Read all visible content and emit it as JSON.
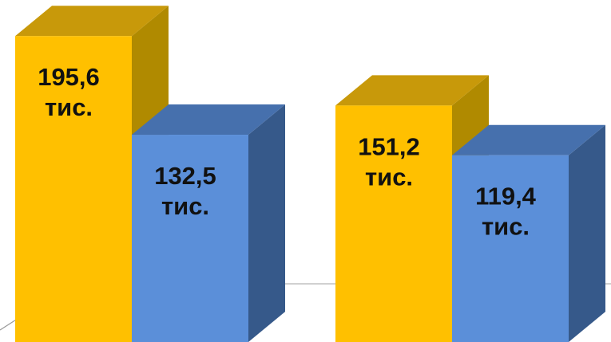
{
  "chart_data": {
    "type": "bar",
    "style": "3d-column",
    "categories": [
      "",
      ""
    ],
    "series": [
      {
        "color": "#FFC000",
        "side_color": "#B08A00",
        "top_color": "#C8990A",
        "values": [
          195.6,
          151.2
        ],
        "labels": [
          [
            "195,6",
            "тис."
          ],
          [
            "151,2",
            "тис."
          ]
        ]
      },
      {
        "color": "#5B8FD9",
        "side_color": "#36598A",
        "top_color": "#4670AD",
        "values": [
          132.5,
          119.4
        ],
        "labels": [
          [
            "132,5",
            "тис."
          ],
          [
            "119,4",
            "тис."
          ]
        ]
      }
    ],
    "title": "",
    "xlabel": "",
    "ylabel": "",
    "unit": "тис.",
    "grid": false,
    "legend": "none"
  }
}
